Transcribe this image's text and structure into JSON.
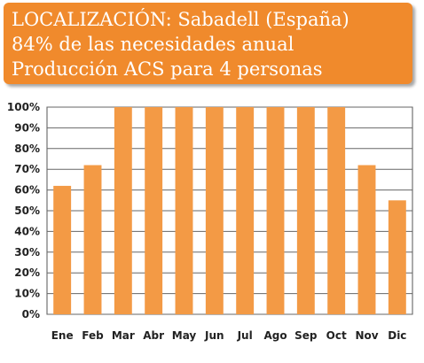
{
  "header": {
    "line1": "LOCALIZACIÓN: Sabadell (España)",
    "line2": "84% de las necesidades anual",
    "line3": "Producción ACS para 4 personas",
    "background": "#F08A2C"
  },
  "chart_data": {
    "type": "bar",
    "title": "",
    "xlabel": "",
    "ylabel": "",
    "categories": [
      "Ene",
      "Feb",
      "Mar",
      "Abr",
      "May",
      "Jun",
      "Jul",
      "Ago",
      "Sep",
      "Oct",
      "Nov",
      "Dic"
    ],
    "values": [
      62,
      72,
      100,
      100,
      100,
      100,
      100,
      100,
      100,
      100,
      72,
      55
    ],
    "ylim": [
      0,
      100
    ],
    "yticks": [
      "0%",
      "10%",
      "20%",
      "30%",
      "40%",
      "50%",
      "60%",
      "70%",
      "80%",
      "90%",
      "100%"
    ],
    "grid": true,
    "bar_color": "#F39A45"
  }
}
